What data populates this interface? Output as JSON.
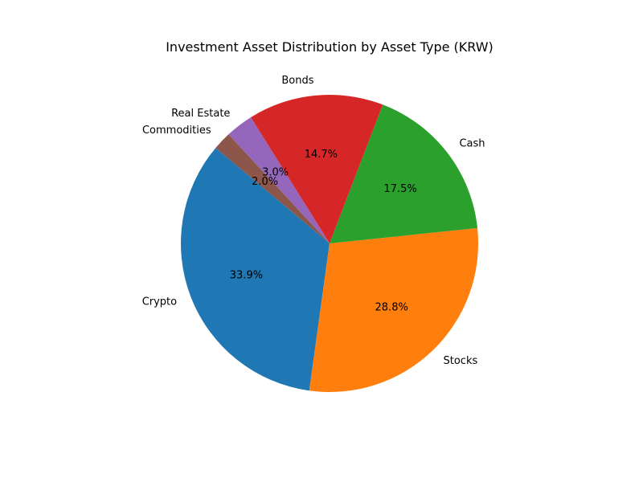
{
  "chart_data": {
    "type": "pie",
    "title": "Investment Asset Distribution by Asset Type (KRW)",
    "start_angle_deg": 140,
    "direction": "counterclockwise",
    "slices": [
      {
        "label": "Crypto",
        "percent": 33.9,
        "color": "#1f77b4"
      },
      {
        "label": "Stocks",
        "percent": 28.8,
        "color": "#ff7f0e"
      },
      {
        "label": "Cash",
        "percent": 17.5,
        "color": "#2ca02c"
      },
      {
        "label": "Bonds",
        "percent": 14.7,
        "color": "#d62728"
      },
      {
        "label": "Real Estate",
        "percent": 3.0,
        "color": "#9467bd"
      },
      {
        "label": "Commodities",
        "percent": 2.0,
        "color": "#8c564b"
      }
    ]
  }
}
